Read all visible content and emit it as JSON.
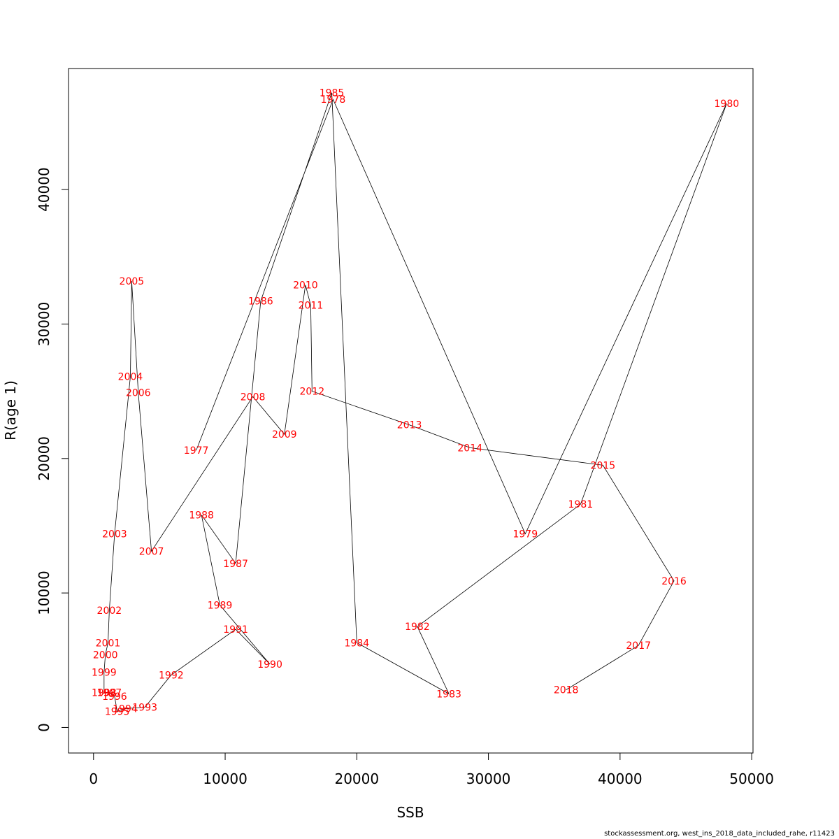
{
  "footer_text": "stockassessment.org, west_ins_2018_data_included_rahe, r11423",
  "colors": {
    "label": "#ff0000",
    "line": "#000000"
  },
  "chart_data": {
    "type": "line",
    "xlabel": "SSB",
    "ylabel": "R(age 1)",
    "xlim": [
      -1900,
      50100
    ],
    "ylim": [
      -1900,
      49000
    ],
    "xticks": [
      0,
      10000,
      20000,
      30000,
      40000,
      50000
    ],
    "yticks": [
      0,
      10000,
      20000,
      30000,
      40000
    ],
    "grid": false,
    "points": [
      {
        "year": "1977",
        "x": 7800,
        "y": 20600
      },
      {
        "year": "1978",
        "x": 18200,
        "y": 46700
      },
      {
        "year": "1979",
        "x": 32800,
        "y": 14400
      },
      {
        "year": "1980",
        "x": 48100,
        "y": 46400
      },
      {
        "year": "1981",
        "x": 37000,
        "y": 16600
      },
      {
        "year": "1982",
        "x": 24600,
        "y": 7500
      },
      {
        "year": "1983",
        "x": 27000,
        "y": 2500
      },
      {
        "year": "1984",
        "x": 20000,
        "y": 6300
      },
      {
        "year": "1985",
        "x": 18100,
        "y": 47200
      },
      {
        "year": "1986",
        "x": 12700,
        "y": 31700
      },
      {
        "year": "1987",
        "x": 10800,
        "y": 12200
      },
      {
        "year": "1988",
        "x": 8200,
        "y": 15800
      },
      {
        "year": "1989",
        "x": 9600,
        "y": 9100
      },
      {
        "year": "1990",
        "x": 13400,
        "y": 4700
      },
      {
        "year": "1991",
        "x": 10800,
        "y": 7300
      },
      {
        "year": "1992",
        "x": 5900,
        "y": 3900
      },
      {
        "year": "1993",
        "x": 3900,
        "y": 1500
      },
      {
        "year": "1994",
        "x": 2400,
        "y": 1400
      },
      {
        "year": "1995",
        "x": 1800,
        "y": 1200
      },
      {
        "year": "1996",
        "x": 1600,
        "y": 2300
      },
      {
        "year": "1997",
        "x": 1200,
        "y": 2600
      },
      {
        "year": "1998",
        "x": 800,
        "y": 2600
      },
      {
        "year": "1999",
        "x": 800,
        "y": 4100
      },
      {
        "year": "2000",
        "x": 900,
        "y": 5400
      },
      {
        "year": "2001",
        "x": 1100,
        "y": 6300
      },
      {
        "year": "2002",
        "x": 1200,
        "y": 8700
      },
      {
        "year": "2003",
        "x": 1600,
        "y": 14400
      },
      {
        "year": "2004",
        "x": 2800,
        "y": 26100
      },
      {
        "year": "2005",
        "x": 2900,
        "y": 33200
      },
      {
        "year": "2006",
        "x": 3400,
        "y": 24900
      },
      {
        "year": "2007",
        "x": 4400,
        "y": 13100
      },
      {
        "year": "2008",
        "x": 12100,
        "y": 24600
      },
      {
        "year": "2009",
        "x": 14500,
        "y": 21800
      },
      {
        "year": "2010",
        "x": 16100,
        "y": 32900
      },
      {
        "year": "2011",
        "x": 16500,
        "y": 31400
      },
      {
        "year": "2012",
        "x": 16600,
        "y": 25000
      },
      {
        "year": "2013",
        "x": 24000,
        "y": 22500
      },
      {
        "year": "2014",
        "x": 28600,
        "y": 20800
      },
      {
        "year": "2015",
        "x": 38700,
        "y": 19500
      },
      {
        "year": "2016",
        "x": 44100,
        "y": 10900
      },
      {
        "year": "2017",
        "x": 41400,
        "y": 6100
      },
      {
        "year": "2018",
        "x": 35900,
        "y": 2800
      }
    ]
  }
}
